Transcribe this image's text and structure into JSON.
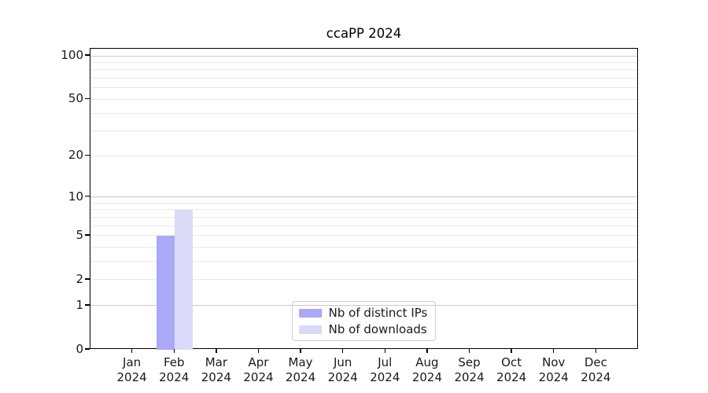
{
  "chart_data": {
    "type": "bar",
    "title": "ccaPP 2024",
    "categories": [
      "Jan 2024",
      "Feb 2024",
      "Mar 2024",
      "Apr 2024",
      "May 2024",
      "Jun 2024",
      "Jul 2024",
      "Aug 2024",
      "Sep 2024",
      "Oct 2024",
      "Nov 2024",
      "Dec 2024"
    ],
    "series": [
      {
        "name": "Nb of distinct IPs",
        "color": "#a9a9f8",
        "values": [
          0,
          5,
          0,
          0,
          0,
          0,
          0,
          0,
          0,
          0,
          0,
          0
        ]
      },
      {
        "name": "Nb of downloads",
        "color": "#dadaf8",
        "values": [
          0,
          8,
          0,
          0,
          0,
          0,
          0,
          0,
          0,
          0,
          0,
          0
        ]
      }
    ],
    "yscale": "log1p",
    "ylim": [
      0,
      112
    ],
    "y_ticks_labeled": [
      0,
      1,
      2,
      5,
      10,
      20,
      50,
      100
    ],
    "y_grid_major": [
      1,
      10,
      100
    ],
    "y_grid_minor": [
      2,
      3,
      4,
      5,
      6,
      7,
      8,
      9,
      20,
      30,
      40,
      50,
      60,
      70,
      80,
      90
    ],
    "grid": true,
    "legend_position": "lower center",
    "legend_entries": [
      "Nb of distinct IPs",
      "Nb of downloads"
    ]
  },
  "colors": {
    "grid_major": "#c9c9c9",
    "grid_minor": "#e9e9e9",
    "spine": "#000000",
    "text": "#1a1a1a",
    "legend_border": "#cccccc",
    "legend_bg": "#ffffff"
  }
}
